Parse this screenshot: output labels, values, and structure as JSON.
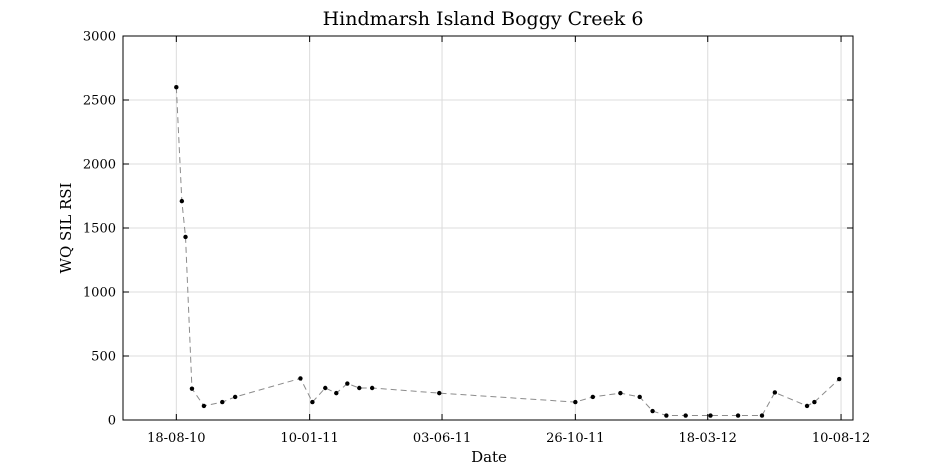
{
  "chart_data": {
    "type": "line",
    "title": "Hindmarsh Island Boggy Creek 6",
    "xlabel": "Date",
    "ylabel": "WQ SIL RSI",
    "xlim": [
      "2010-06-21",
      "2012-08-23"
    ],
    "ylim": [
      0,
      3000
    ],
    "x_ticks": [
      "2010-08-18",
      "2011-01-10",
      "2011-06-03",
      "2011-10-26",
      "2012-03-18",
      "2012-08-10"
    ],
    "x_tick_labels": [
      "18-08-10",
      "10-01-11",
      "03-06-11",
      "26-10-11",
      "18-03-12",
      "10-08-12"
    ],
    "y_ticks": [
      0,
      500,
      1000,
      1500,
      2000,
      2500,
      3000
    ],
    "y_tick_labels": [
      "0",
      "500",
      "1000",
      "1500",
      "2000",
      "2500",
      "3000"
    ],
    "grid": true,
    "series": [
      {
        "line_color": "#8c8c8c",
        "marker_color": "#000000",
        "line_style": "dashed",
        "x": [
          "2010-08-18",
          "2010-08-24",
          "2010-08-28",
          "2010-09-04",
          "2010-09-17",
          "2010-10-07",
          "2010-10-21",
          "2010-12-31",
          "2011-01-13",
          "2011-01-27",
          "2011-02-08",
          "2011-02-20",
          "2011-03-05",
          "2011-03-19",
          "2011-05-31",
          "2011-10-26",
          "2011-11-14",
          "2011-12-14",
          "2012-01-04",
          "2012-01-18",
          "2012-02-02",
          "2012-02-23",
          "2012-03-21",
          "2012-04-20",
          "2012-05-16",
          "2012-05-30",
          "2012-07-04",
          "2012-07-12",
          "2012-08-08"
        ],
        "y": [
          2600,
          1710,
          1430,
          245,
          110,
          140,
          180,
          325,
          140,
          250,
          210,
          285,
          250,
          250,
          210,
          140,
          180,
          210,
          180,
          70,
          35,
          35,
          35,
          35,
          35,
          215,
          110,
          140,
          320
        ]
      }
    ]
  }
}
